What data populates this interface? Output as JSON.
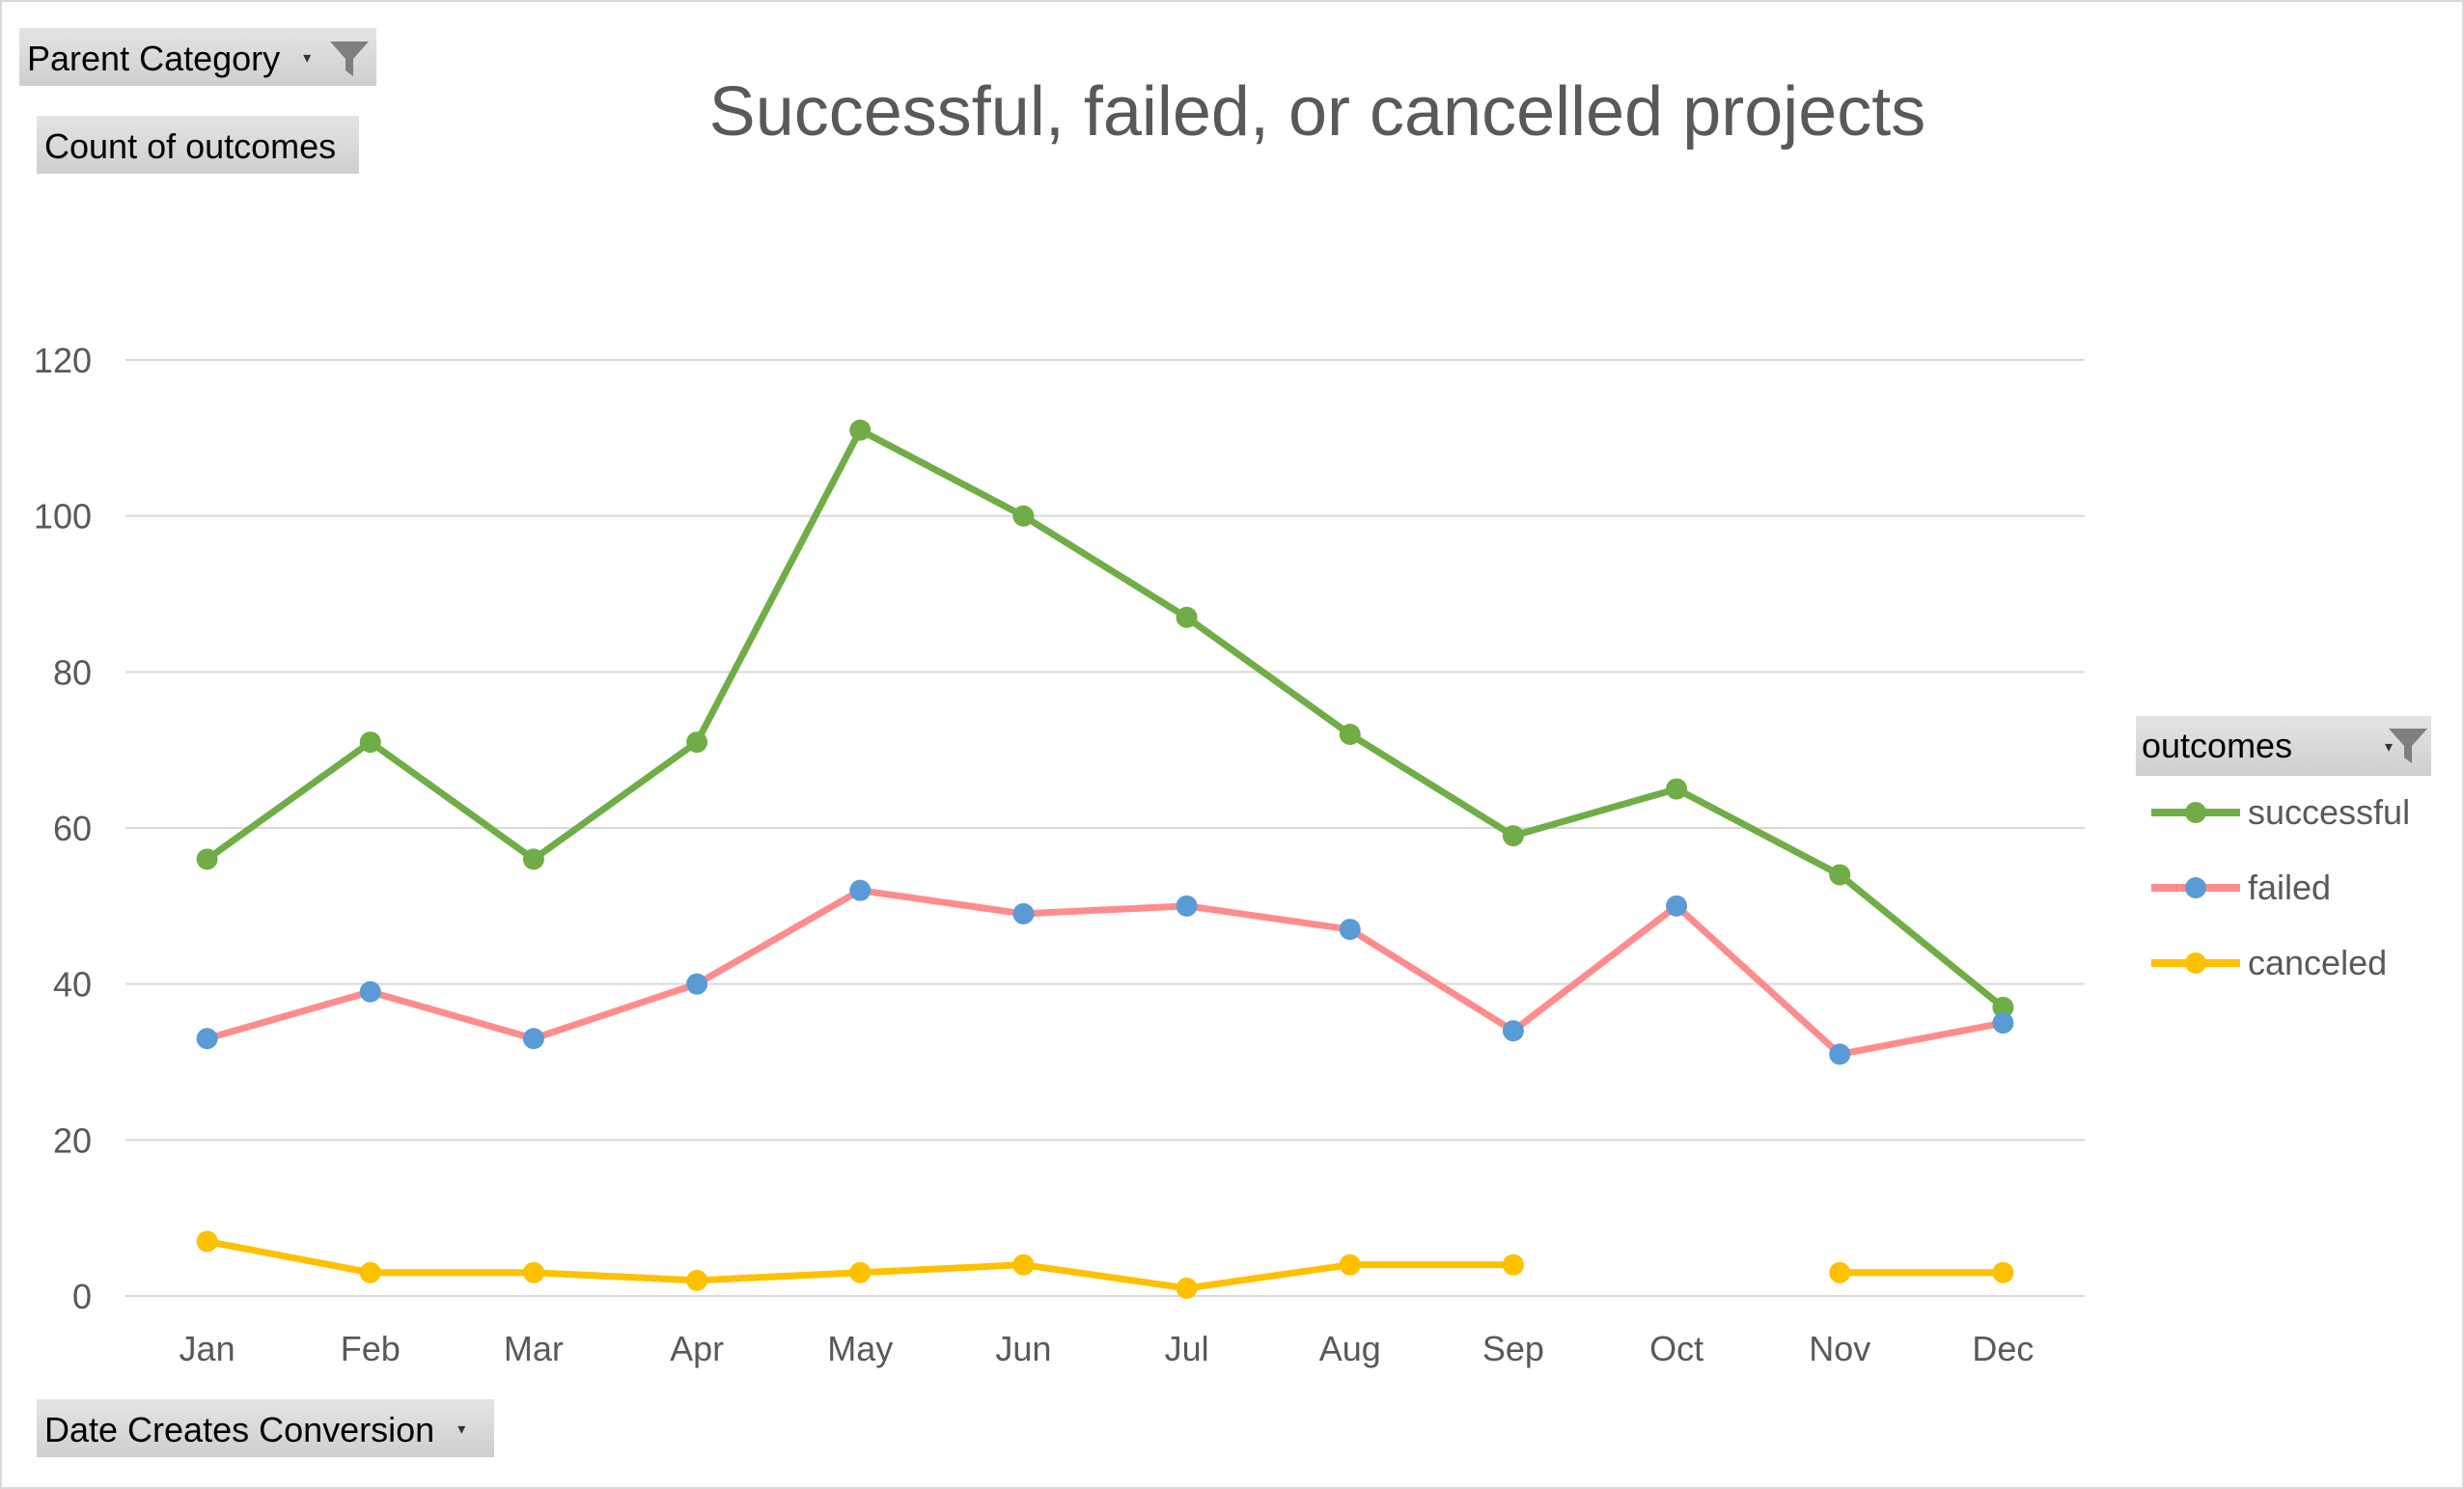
{
  "filters": {
    "parent_category": "Parent Category",
    "values_field": "Count of outcomes",
    "axis_field": "Date Creates Conversion",
    "legend_field": "outcomes"
  },
  "colors": {
    "successful": "#70ad47",
    "failed_line": "#ff8c8c",
    "failed_marker": "#5b9bd5",
    "canceled": "#ffc000",
    "grid": "#d9d9d9",
    "text": "#595959"
  },
  "chart_data": {
    "type": "line",
    "title": "Successful, failed, or cancelled  projects",
    "xlabel": "",
    "ylabel": "",
    "ylim": [
      0,
      120
    ],
    "yticks": [
      0,
      20,
      40,
      60,
      80,
      100,
      120
    ],
    "grid": true,
    "legend_position": "right",
    "categories": [
      "Jan",
      "Feb",
      "Mar",
      "Apr",
      "May",
      "Jun",
      "Jul",
      "Aug",
      "Sep",
      "Oct",
      "Nov",
      "Dec"
    ],
    "series": [
      {
        "name": "successful",
        "values": [
          56,
          71,
          56,
          71,
          111,
          100,
          87,
          72,
          59,
          65,
          54,
          37
        ]
      },
      {
        "name": "failed",
        "values": [
          33,
          39,
          33,
          40,
          52,
          49,
          50,
          47,
          34,
          50,
          31,
          35
        ]
      },
      {
        "name": "canceled",
        "values": [
          7,
          3,
          3,
          2,
          3,
          4,
          1,
          4,
          4,
          null,
          3,
          3
        ]
      }
    ]
  }
}
